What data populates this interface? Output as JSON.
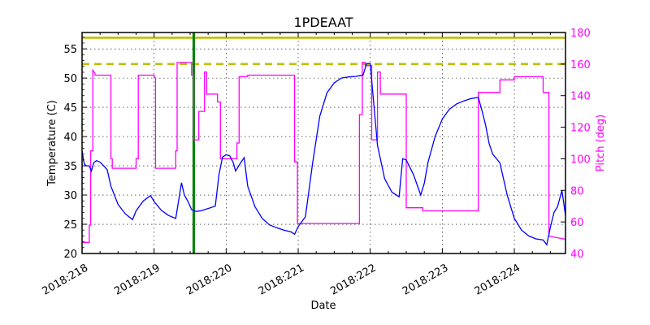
{
  "chart_data": {
    "type": "line",
    "title": "1PDEAAT",
    "xlabel": "Date",
    "ylabel": "Temperature (C)",
    "y2label": "Pitch (deg)",
    "xlim": [
      218.0,
      224.71
    ],
    "ylim": [
      20,
      57.8
    ],
    "y2lim": [
      40,
      180
    ],
    "grid": true,
    "x_ticks": [
      218,
      219,
      220,
      221,
      222,
      223,
      224
    ],
    "x_tick_labels": [
      "2018:218",
      "2018:219",
      "2018:220",
      "2018:221",
      "2018:222",
      "2018:223",
      "2018:224"
    ],
    "y_ticks": [
      20,
      25,
      30,
      35,
      40,
      45,
      50,
      55
    ],
    "y_tick_labels": [
      "20",
      "25",
      "30",
      "35",
      "40",
      "45",
      "50",
      "55"
    ],
    "y2_ticks": [
      40,
      60,
      80,
      100,
      120,
      140,
      160,
      180
    ],
    "y2_tick_labels": [
      "40",
      "60",
      "80",
      "100",
      "120",
      "140",
      "160",
      "180"
    ],
    "colors": {
      "temperature": "#0000ff",
      "pitch": "#ff00ff",
      "limit_line": "#bfbf00",
      "now_line": "#008000",
      "axis": "#000000",
      "y2_axis_text": "#ff00ff"
    },
    "reference_lines": [
      {
        "name": "planning-limit",
        "axis": "y",
        "value": 56.9,
        "style": "solid",
        "color": "#bfbf00"
      },
      {
        "name": "caution-limit",
        "axis": "y",
        "value": 52.4,
        "style": "dashed",
        "color": "#bfbf00"
      },
      {
        "name": "current-time",
        "axis": "x",
        "value": 219.55,
        "style": "solid",
        "color": "#008000"
      }
    ],
    "series": [
      {
        "name": "Temperature",
        "axis": "y",
        "color": "#0000ff",
        "x": [
          218.0,
          218.03,
          218.06,
          218.1,
          218.13,
          218.16,
          218.2,
          218.25,
          218.3,
          218.35,
          218.4,
          218.5,
          218.6,
          218.7,
          218.75,
          218.85,
          218.95,
          219.0,
          219.1,
          219.2,
          219.3,
          219.38,
          219.42,
          219.47,
          219.52,
          219.58,
          219.65,
          219.75,
          219.85,
          219.9,
          219.95,
          220.0,
          220.05,
          220.1,
          220.13,
          220.2,
          220.25,
          220.3,
          220.4,
          220.5,
          220.6,
          220.7,
          220.8,
          220.9,
          220.95,
          221.0,
          221.1,
          221.2,
          221.3,
          221.4,
          221.5,
          221.6,
          221.7,
          221.8,
          221.85,
          221.9,
          221.95,
          222.0,
          222.05,
          222.1,
          222.2,
          222.3,
          222.4,
          222.45,
          222.5,
          222.6,
          222.7,
          222.75,
          222.8,
          222.9,
          223.0,
          223.1,
          223.2,
          223.3,
          223.4,
          223.5,
          223.55,
          223.6,
          223.65,
          223.7,
          223.8,
          223.9,
          224.0,
          224.1,
          224.2,
          224.3,
          224.4,
          224.45,
          224.5,
          224.55,
          224.6,
          224.66,
          224.71
        ],
        "values": [
          37.5,
          35.3,
          35.0,
          35.0,
          34.1,
          35.5,
          35.9,
          35.6,
          35.0,
          34.3,
          31.5,
          28.4,
          26.8,
          25.8,
          27.3,
          29.0,
          29.9,
          28.9,
          27.4,
          26.5,
          26.0,
          32.1,
          30.0,
          28.9,
          27.5,
          27.2,
          27.3,
          27.7,
          28.1,
          33.5,
          36.5,
          36.9,
          36.7,
          35.5,
          34.1,
          35.5,
          36.4,
          31.5,
          28.0,
          26.0,
          24.9,
          24.4,
          24.0,
          23.7,
          23.3,
          24.6,
          26.3,
          35.5,
          43.5,
          47.5,
          49.2,
          50.0,
          50.2,
          50.3,
          50.4,
          50.5,
          52.5,
          52.5,
          45.5,
          38.5,
          32.8,
          30.5,
          29.7,
          36.2,
          36.0,
          33.5,
          30.0,
          32.0,
          35.5,
          40.0,
          43.0,
          44.7,
          45.6,
          46.1,
          46.5,
          46.7,
          44.5,
          42.0,
          38.8,
          37.0,
          35.5,
          30.0,
          26.0,
          24.0,
          23.0,
          22.5,
          22.3,
          21.5,
          24.5,
          27.0,
          28.0,
          30.8,
          26.5
        ]
      },
      {
        "name": "Pitch",
        "axis": "y2",
        "color": "#ff00ff",
        "x": [
          218.0,
          218.1,
          218.1,
          218.12,
          218.12,
          218.15,
          218.15,
          218.18,
          218.18,
          218.4,
          218.4,
          218.42,
          218.42,
          218.75,
          218.75,
          218.78,
          218.78,
          219.0,
          219.0,
          219.02,
          219.02,
          219.3,
          219.3,
          219.32,
          219.32,
          219.52,
          219.52,
          219.55,
          219.55,
          219.62,
          219.62,
          219.7,
          219.7,
          219.73,
          219.73,
          219.88,
          219.88,
          219.92,
          219.92,
          220.15,
          220.15,
          220.18,
          220.18,
          220.3,
          220.3,
          220.33,
          220.33,
          220.95,
          220.95,
          220.99,
          220.99,
          221.85,
          221.85,
          221.89,
          221.89,
          221.93,
          221.93,
          222.02,
          222.02,
          222.1,
          222.1,
          222.14,
          222.14,
          222.5,
          222.5,
          222.73,
          222.73,
          223.5,
          223.5,
          223.8,
          223.8,
          224.0,
          224.0,
          224.4,
          224.4,
          224.48,
          224.48,
          224.71
        ],
        "values": [
          47,
          47,
          58,
          58,
          105,
          105,
          156,
          154,
          153,
          153,
          100,
          100,
          94,
          94,
          100,
          100,
          153,
          153,
          152,
          151,
          94,
          94,
          105,
          105,
          161,
          161,
          153,
          153,
          112,
          112,
          130,
          130,
          155,
          155,
          141,
          141,
          136,
          136,
          100,
          100,
          110,
          110,
          152,
          152,
          153,
          153,
          153,
          153,
          98,
          98,
          59,
          59,
          128,
          128,
          161,
          161,
          159,
          159,
          112,
          112,
          155,
          155,
          141,
          141,
          69,
          69,
          67,
          67,
          142,
          142,
          150,
          150,
          152,
          152,
          142,
          142,
          51,
          49
        ]
      }
    ]
  }
}
